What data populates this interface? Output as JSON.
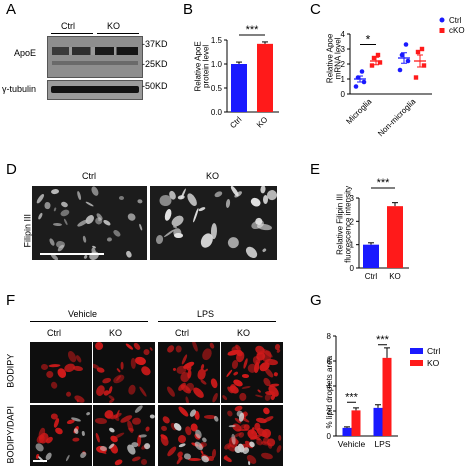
{
  "panels": {
    "A": {
      "letter": "A",
      "lanes": [
        "Ctrl",
        "KO"
      ],
      "rows": [
        "ApoE",
        "γ-tubulin"
      ],
      "markers": [
        "-37KD",
        "-25KD",
        "-50KD"
      ]
    },
    "B": {
      "letter": "B",
      "ylabel": "Relative ApoE protein level",
      "sig": "***"
    },
    "C": {
      "letter": "C",
      "ylabel": "Relative Apoe mRNA level",
      "sig": "*",
      "legend": [
        "Ctrl",
        "cKO"
      ]
    },
    "D": {
      "letter": "D",
      "conditions": [
        "Ctrl",
        "KO"
      ],
      "row_label": "Filipin III"
    },
    "E": {
      "letter": "E",
      "ylabel": "Relative Filipin III fluorescence intensity",
      "sig": "***"
    },
    "F": {
      "letter": "F",
      "groups": [
        "Vehicle",
        "LPS"
      ],
      "conditions": [
        "Ctrl",
        "KO",
        "Ctrl",
        "KO"
      ],
      "rows": [
        "BODIPY",
        "BODIPY/DAPI"
      ]
    },
    "G": {
      "letter": "G",
      "ylabel": "% lipid droplets area",
      "sig": [
        "***",
        "***"
      ],
      "legend": [
        "Ctrl",
        "KO"
      ]
    }
  },
  "colors": {
    "ctrl": "#1a1aff",
    "ko": "#ff1a1a"
  },
  "chart_data": [
    {
      "type": "bar",
      "panel": "B",
      "categories": [
        "Ctrl",
        "KO"
      ],
      "values": [
        1.0,
        1.42
      ],
      "errors": [
        0.04,
        0.04
      ],
      "ylabel": "Relative ApoE protein level",
      "ylim": [
        0,
        1.5
      ],
      "yticks": [
        0.0,
        0.5,
        1.0,
        1.5
      ]
    },
    {
      "type": "bar",
      "panel": "C",
      "categories": [
        "Microglia",
        "Non-microglia"
      ],
      "series": [
        {
          "name": "Ctrl",
          "values": [
            1.0,
            2.4
          ],
          "errors": [
            0.2,
            0.35
          ],
          "points": [
            [
              0.5,
              0.8,
              1.1,
              1.5
            ],
            [
              1.6,
              2.2,
              2.6,
              3.3
            ]
          ]
        },
        {
          "name": "cKO",
          "values": [
            2.2,
            2.2
          ],
          "errors": [
            0.25,
            0.4
          ],
          "points": [
            [
              1.9,
              2.1,
              2.4,
              2.6
            ],
            [
              1.1,
              1.9,
              2.8,
              3.0
            ]
          ]
        }
      ],
      "ylabel": "Relative Apoe mRNA level",
      "ylim": [
        0,
        4
      ],
      "yticks": [
        0,
        1,
        2,
        3,
        4
      ]
    },
    {
      "type": "bar",
      "panel": "E",
      "categories": [
        "Ctrl",
        "KO"
      ],
      "values": [
        1.0,
        2.65
      ],
      "errors": [
        0.08,
        0.15
      ],
      "ylabel": "Relative Filipin III fluorescence intensity",
      "ylim": [
        0,
        3
      ],
      "yticks": [
        0,
        1,
        2,
        3
      ]
    },
    {
      "type": "bar",
      "panel": "G",
      "categories": [
        "Vehicle",
        "LPS"
      ],
      "series": [
        {
          "name": "Ctrl",
          "values": [
            0.65,
            2.25
          ],
          "errors": [
            0.08,
            0.25
          ]
        },
        {
          "name": "KO",
          "values": [
            2.05,
            6.25
          ],
          "errors": [
            0.2,
            0.8
          ]
        }
      ],
      "ylabel": "% lipid droplets area",
      "ylim": [
        0,
        8
      ],
      "yticks": [
        0,
        2,
        4,
        6,
        8
      ]
    }
  ]
}
